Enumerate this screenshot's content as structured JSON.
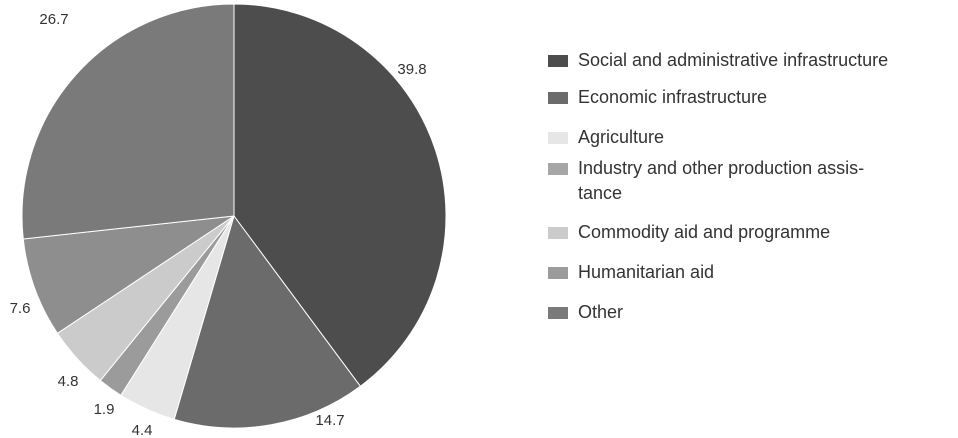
{
  "chart_data": {
    "type": "pie",
    "series": [
      {
        "name": "Social and administrative infrastructure",
        "value": 39.8,
        "label": "39.8",
        "color": "#4d4d4d"
      },
      {
        "name": "Economic infrastructure",
        "value": 14.7,
        "label": "14.7",
        "color": "#6b6b6b"
      },
      {
        "name": "Agriculture",
        "value": 4.4,
        "label": "4.4",
        "color": "#e6e6e6"
      },
      {
        "name": "Industry and other production assis-tance",
        "value": 1.9,
        "label": "1.9",
        "color": "#9b9b9b"
      },
      {
        "name": "Commodity aid and programme",
        "value": 4.8,
        "label": "4.8",
        "color": "#cbcbcb"
      },
      {
        "name": "Humanitarian aid",
        "value": 7.6,
        "label": "7.6",
        "color": "#8e8e8e"
      },
      {
        "name": "Other",
        "value": 26.7,
        "label": "26.7",
        "color": "#7a7a7a"
      }
    ],
    "legend": {
      "placement": "right",
      "items": [
        {
          "label": "Social and administrative infrastructure",
          "color": "#4d4d4d"
        },
        {
          "label": "Economic infrastructure",
          "color": "#6b6b6b"
        },
        {
          "label": "Agriculture",
          "color": "#e6e6e6"
        },
        {
          "label": "Industry and other production assis-\ntance",
          "color": "#a6a6a6"
        },
        {
          "label": "Commodity aid and programme",
          "color": "#cbcbcb"
        },
        {
          "label": "Humanitarian aid",
          "color": "#9b9b9b"
        },
        {
          "label": "Other",
          "color": "#7a7a7a"
        }
      ]
    }
  }
}
